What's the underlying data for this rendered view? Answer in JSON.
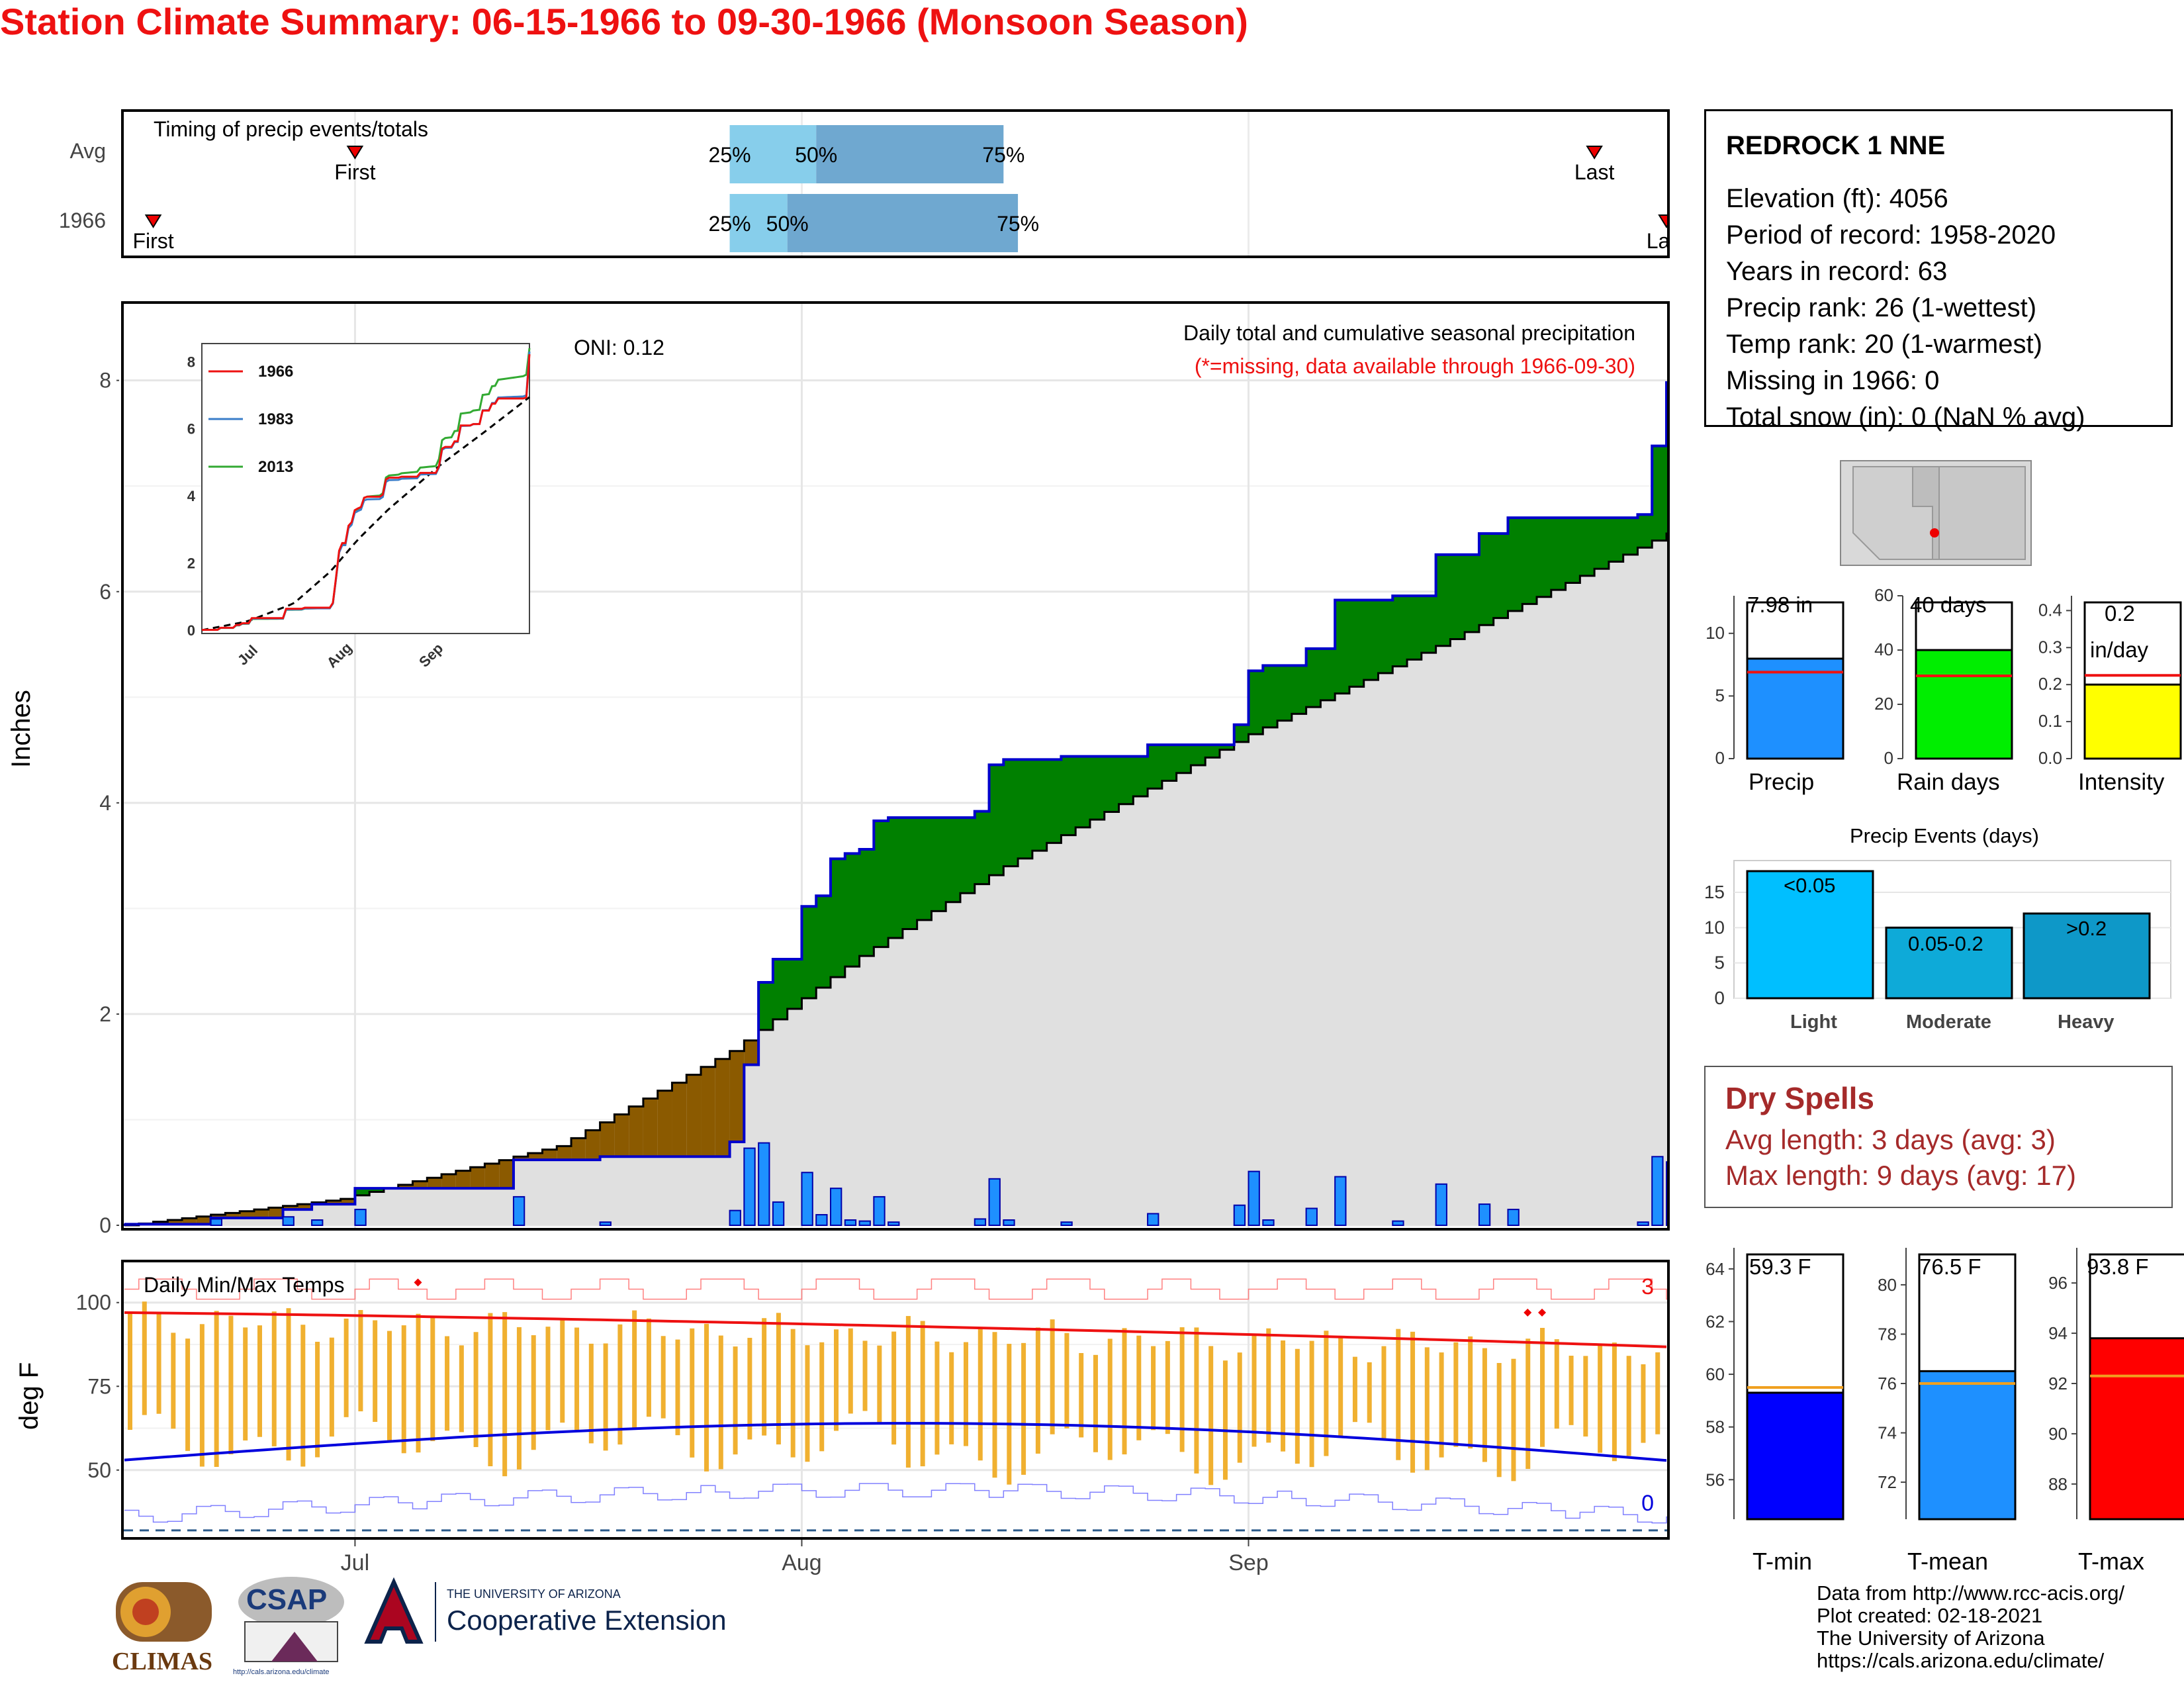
{
  "title": "Station Climate Summary: 06-15-1966 to 09-30-1966 (Monsoon Season)",
  "timing": {
    "label": "Timing of precip events/totals",
    "rows": [
      {
        "name": "Avg",
        "first_label": "First",
        "last_label": "Last",
        "p25": "25%",
        "p50": "50%",
        "p75": "75%",
        "first_date": "2000-07-01",
        "last_date": "2000-09-25",
        "p25_date": "2000-07-27",
        "p50_date": "2000-08-02",
        "p75_date": "2000-08-15"
      },
      {
        "name": "1966",
        "first_label": "First",
        "last_label": "Last",
        "p25": "25%",
        "p50": "50%",
        "p75": "75%",
        "first_date": "2000-06-17",
        "last_date": "2000-09-30",
        "p25_date": "2000-07-27",
        "p50_date": "2000-07-31",
        "p75_date": "2000-08-16"
      }
    ]
  },
  "main_plot": {
    "ylabel": "Inches",
    "oni": "ONI: 0.12",
    "caption1": "Daily total and cumulative seasonal precipitation",
    "caption2": "(*=missing, data available through 1966-09-30)",
    "yticks": [
      "0",
      "2",
      "4",
      "6",
      "8"
    ],
    "x_months": [
      "Jul",
      "Aug",
      "Sep"
    ],
    "colors": {
      "above": "#008000",
      "below": "#8b5a00",
      "avg_fill": "#e0e0e0",
      "cum_line": "#0000cc",
      "daily_bar": "#1e90ff"
    }
  },
  "inset": {
    "legend": [
      "1966",
      "1983",
      "2013"
    ],
    "colors": [
      "#ee1111",
      "#3a7dc9",
      "#33aa33"
    ],
    "yticks": [
      "0",
      "2",
      "4",
      "6",
      "8"
    ],
    "x_months": [
      "Jul",
      "Aug",
      "Sep"
    ]
  },
  "temp_plot": {
    "label": "Daily Min/Max Temps",
    "ylabel": "deg F",
    "yticks": [
      "50",
      "75",
      "100"
    ],
    "count_high": "3",
    "count_low": "0",
    "colors": {
      "bar": "#f0b030",
      "max_avg": "#ee1111",
      "min_avg": "#0000dd"
    }
  },
  "station": {
    "name": "REDROCK 1 NNE",
    "lines": [
      "Elevation (ft): 4056",
      "Period of record: 1958-2020",
      "Years in record: 63",
      "Precip rank: 26 (1-wettest)",
      "Temp rank: 20 (1-warmest)",
      "Missing in 1966: 0",
      "Total snow (in): 0 (NaN % avg)"
    ]
  },
  "mini_bars": [
    {
      "label": "Precip",
      "value_text": "7.98 in",
      "value": 7.98,
      "avg": 6.9,
      "ymax": 13,
      "yticks": [
        "0",
        "5",
        "10"
      ],
      "color": "#1e90ff"
    },
    {
      "label": "Rain days",
      "value_text": "40 days",
      "value": 40,
      "avg": 30.5,
      "ymax": 60,
      "yticks": [
        "0",
        "20",
        "40",
        "60"
      ],
      "color": "#00ee00"
    },
    {
      "label": "Intensity",
      "value_text_1": "0.2",
      "value_text_2": "in/day",
      "value": 0.2,
      "avg": 0.225,
      "ymax": 0.44,
      "yticks": [
        "0.0",
        "0.1",
        "0.2",
        "0.3",
        "0.4"
      ],
      "color": "#ffff00"
    }
  ],
  "events": {
    "title": "Precip Events (days)",
    "yticks": [
      "0",
      "5",
      "10",
      "15"
    ],
    "bars": [
      {
        "category": "Light",
        "label": "<0.05",
        "value": 18,
        "color": "#00bfff"
      },
      {
        "category": "Moderate",
        "label": "0.05-0.2",
        "value": 10,
        "color": "#0eaad8"
      },
      {
        "category": "Heavy",
        "label": ">0.2",
        "value": 12,
        "color": "#0e98c8"
      }
    ]
  },
  "dry_spells": {
    "title": "Dry Spells",
    "line1": "Avg length: 3 days (avg: 3)",
    "line2": "Max length: 9 days (avg: 17)"
  },
  "temp_bars": [
    {
      "label": "T-min",
      "value_text": "59.3 F",
      "value": 59.3,
      "avg": 59.5,
      "ymin": 54.5,
      "ymax": 64.8,
      "yticks": [
        "56",
        "58",
        "60",
        "62",
        "64"
      ],
      "color": "#0000ff"
    },
    {
      "label": "T-mean",
      "value_text": "76.5 F",
      "value": 76.5,
      "avg": 76.0,
      "ymin": 70.5,
      "ymax": 81.5,
      "yticks": [
        "72",
        "74",
        "76",
        "78",
        "80"
      ],
      "color": "#1e90ff"
    },
    {
      "label": "T-max",
      "value_text": "93.8 F",
      "value": 93.8,
      "avg": 92.3,
      "ymin": 86.6,
      "ymax": 97.4,
      "yticks": [
        "88",
        "90",
        "92",
        "94",
        "96"
      ],
      "color": "#ff0000"
    }
  ],
  "logos": {
    "climas": "CLIMAS",
    "csap": "CSAP",
    "csap_url": "http://cals.arizona.edu/climate",
    "ua_small": "THE UNIVERSITY OF ARIZONA",
    "ua_big": "Cooperative Extension"
  },
  "credits": [
    "Data from http://www.rcc-acis.org/",
    "Plot created: 02-18-2021",
    "The University of Arizona",
    "https://cals.arizona.edu/climate/"
  ],
  "chart_data": [
    {
      "type": "area",
      "title": "Daily total and cumulative seasonal precipitation",
      "ylabel": "Inches",
      "ylim": [
        0,
        8.7
      ],
      "xlim": [
        "1966-06-15",
        "1966-09-30"
      ],
      "series": [
        {
          "name": "1966",
          "x": [
            "1966-06-15",
            "1966-06-21",
            "1966-06-26",
            "1966-06-28",
            "1966-07-01",
            "1966-07-12",
            "1966-07-18",
            "1966-07-27",
            "1966-07-28",
            "1966-07-29",
            "1966-07-30",
            "1966-08-01",
            "1966-08-02",
            "1966-08-03",
            "1966-08-04",
            "1966-08-05",
            "1966-08-06",
            "1966-08-07",
            "1966-08-13",
            "1966-08-14",
            "1966-08-15",
            "1966-08-19",
            "1966-08-25",
            "1966-08-31",
            "1966-09-01",
            "1966-09-02",
            "1966-09-05",
            "1966-09-07",
            "1966-09-11",
            "1966-09-14",
            "1966-09-17",
            "1966-09-19",
            "1966-09-28",
            "1966-09-29",
            "1966-09-30"
          ],
          "values": [
            0.01,
            0.07,
            0.15,
            0.2,
            0.35,
            0.62,
            0.65,
            0.79,
            1.52,
            2.3,
            2.52,
            3.02,
            3.12,
            3.47,
            3.52,
            3.56,
            3.83,
            3.86,
            3.92,
            4.36,
            4.41,
            4.44,
            4.55,
            4.74,
            5.25,
            5.3,
            5.46,
            5.92,
            5.96,
            6.35,
            6.55,
            6.7,
            6.73,
            7.38,
            7.98
          ]
        },
        {
          "name": "Avg",
          "x": [
            "1966-06-15",
            "1966-06-30",
            "1966-07-15",
            "1966-07-27",
            "1966-08-05",
            "1966-08-15",
            "1966-09-01",
            "1966-09-15",
            "1966-09-30"
          ],
          "values": [
            0.0,
            0.25,
            0.75,
            1.65,
            2.55,
            3.4,
            4.65,
            5.55,
            6.55
          ]
        }
      ]
    },
    {
      "type": "bar",
      "title": "Precip Events (days)",
      "categories": [
        "Light",
        "Moderate",
        "Heavy"
      ],
      "values": [
        18,
        10,
        12
      ]
    },
    {
      "type": "bar",
      "categories": [
        "Precip",
        "Rain days",
        "Intensity",
        "T-min",
        "T-mean",
        "T-max"
      ],
      "values": [
        7.98,
        40,
        0.2,
        59.3,
        76.5,
        93.8
      ]
    }
  ]
}
